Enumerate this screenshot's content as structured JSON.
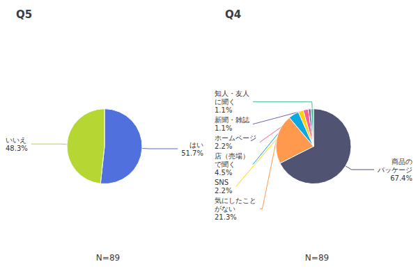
{
  "chart_data": [
    {
      "type": "pie",
      "title": "Q5",
      "categories": [
        "はい",
        "いいえ"
      ],
      "values": [
        51.7,
        48.3
      ],
      "value_labels": [
        "51.7%",
        "48.3%"
      ],
      "data_labels": true,
      "annotations": [
        "N=89"
      ]
    },
    {
      "type": "pie",
      "title": "Q4",
      "categories": [
        "商品の\nパッケージ",
        "気にしたこと\nがない",
        "店（売場）\nで聞く",
        "SNS",
        "ホームページ",
        "新聞・雑誌",
        "知人・友人\nに聞く"
      ],
      "values": [
        67.4,
        21.3,
        4.5,
        2.2,
        2.2,
        1.1,
        1.1
      ],
      "value_labels": [
        "67.4%",
        "21.3%",
        "4.5%",
        "2.2%",
        "2.2%",
        "1.1%",
        "1.1%"
      ],
      "data_labels": true,
      "annotations": [
        "N=89"
      ]
    }
  ]
}
